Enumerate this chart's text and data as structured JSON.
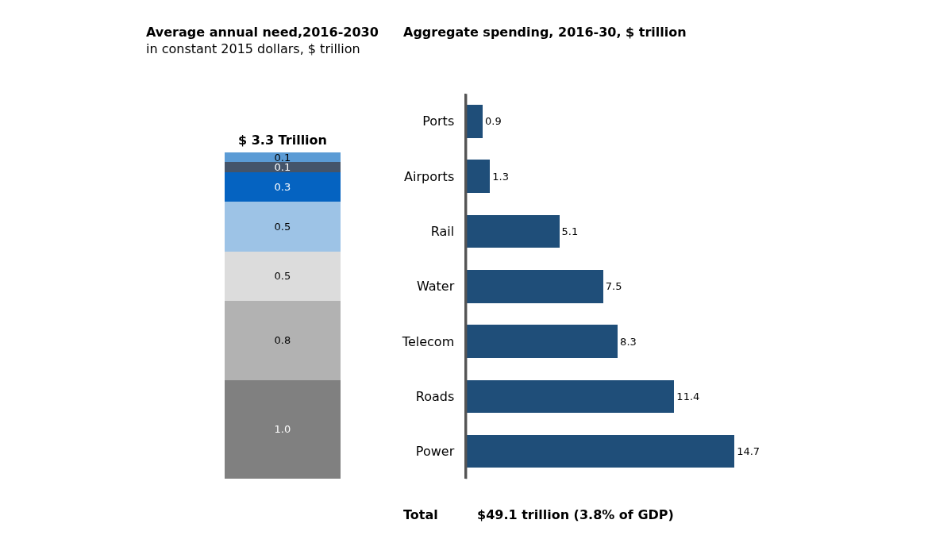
{
  "chart_data": [
    {
      "type": "bar",
      "stacked": true,
      "title": "Average annual need,2016-2030",
      "subtitle": "in constant 2015 dollars, $ trillion",
      "categories": [
        null
      ],
      "totals": [
        "$ 3.3 Trillion"
      ],
      "tick_labels": false,
      "series": [
        {
          "color": "#808080",
          "values": [
            1.0
          ],
          "value_labels": [
            "1.0"
          ]
        },
        {
          "color": "#b2b2b2",
          "values": [
            0.8
          ],
          "value_labels": [
            "0.8"
          ]
        },
        {
          "color": "#dcdcdc",
          "values": [
            0.5
          ],
          "value_labels": [
            "0.5"
          ]
        },
        {
          "color": "#9dc3e6",
          "values": [
            0.5
          ],
          "value_labels": [
            "0.5"
          ]
        },
        {
          "color": "#0563c1",
          "values": [
            0.3
          ],
          "value_labels": [
            "0.3"
          ]
        },
        {
          "color": "#44546a",
          "values": [
            0.1
          ],
          "value_labels": [
            "0.1"
          ]
        },
        {
          "color": "#5b9bd5",
          "values": [
            0.1
          ],
          "value_labels": [
            "0.1"
          ]
        }
      ]
    },
    {
      "type": "bar",
      "orientation": "horizontal",
      "title": "Aggregate spending, 2016-30, $ trillion",
      "categories": [
        "Ports",
        "Airports",
        "Rail",
        "Water",
        "Telecom",
        "Roads",
        "Power"
      ],
      "data_labels": true,
      "tick_labels": "y",
      "series": [
        {
          "color": "#1f4e79",
          "values": [
            0.9,
            1.3,
            5.1,
            7.5,
            8.3,
            11.4,
            14.7
          ]
        }
      ],
      "annotations": [
        "Total",
        "$49.1 trillion (3.8% of GDP)"
      ]
    }
  ]
}
